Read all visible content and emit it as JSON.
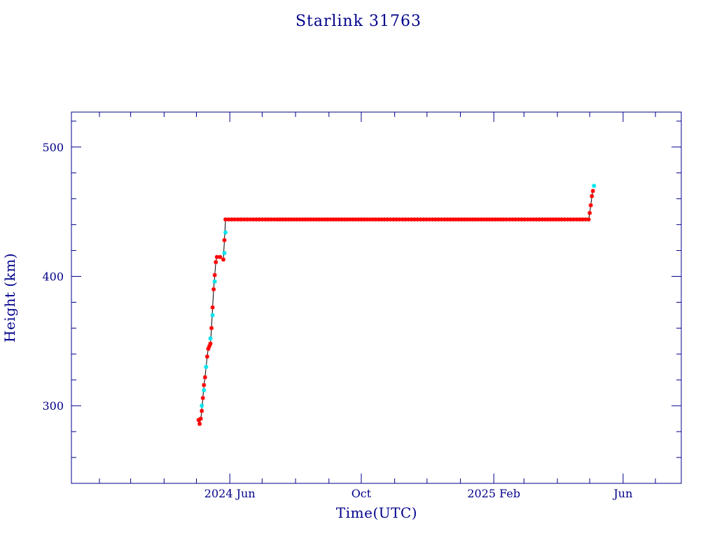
{
  "chart_data": {
    "type": "scatter",
    "title": "Starlink 31763",
    "xlabel": "Time(UTC)",
    "ylabel": "Height (km)",
    "xlim": [
      "2024-01-06",
      "2025-07-25"
    ],
    "ylim": [
      240,
      527
    ],
    "x_ticks": [
      {
        "date": "2024-06-01",
        "label": "2024 Jun"
      },
      {
        "date": "2024-10-01",
        "label": "Oct"
      },
      {
        "date": "2025-02-01",
        "label": "2025 Feb"
      },
      {
        "date": "2025-06-01",
        "label": "Jun"
      }
    ],
    "y_ticks": [
      300,
      400,
      500
    ],
    "grid": false,
    "line_color": "#000000",
    "colors": {
      "red": "#ff0000",
      "cyan": "#00e5ee",
      "axis": "#00008b"
    },
    "series": [
      {
        "color": "red",
        "points": [
          [
            "2024-05-03",
            289
          ],
          [
            "2024-05-04",
            286
          ],
          [
            "2024-05-05",
            290
          ],
          [
            "2024-05-06",
            296
          ],
          [
            "2024-05-07",
            306
          ],
          [
            "2024-05-08",
            316
          ],
          [
            "2024-05-09",
            322
          ],
          [
            "2024-05-11",
            338
          ],
          [
            "2024-05-12",
            344
          ],
          [
            "2024-05-13",
            346
          ],
          [
            "2024-05-14",
            348
          ],
          [
            "2024-05-15",
            360
          ],
          [
            "2024-05-16",
            376
          ],
          [
            "2024-05-17",
            390
          ],
          [
            "2024-05-18",
            401
          ],
          [
            "2024-05-19",
            411
          ],
          [
            "2024-05-20",
            415
          ],
          [
            "2024-05-23",
            415
          ],
          [
            "2024-05-26",
            413
          ],
          [
            "2024-05-27",
            428
          ],
          [
            "2024-05-28",
            444
          ],
          [
            "2024-06-20",
            444
          ],
          [
            "2024-07-15",
            444
          ],
          [
            "2024-08-10",
            444
          ],
          [
            "2024-09-05",
            444
          ],
          [
            "2024-10-01",
            444
          ],
          [
            "2024-10-28",
            444
          ],
          [
            "2024-11-25",
            444
          ],
          [
            "2024-12-20",
            444
          ],
          [
            "2025-01-15",
            444
          ],
          [
            "2025-02-10",
            444
          ],
          [
            "2025-03-10",
            444
          ],
          [
            "2025-04-05",
            444
          ],
          [
            "2025-04-30",
            444
          ],
          [
            "2025-05-01",
            449
          ],
          [
            "2025-05-02",
            455
          ],
          [
            "2025-05-03",
            462
          ],
          [
            "2025-05-04",
            466
          ]
        ]
      },
      {
        "color": "cyan",
        "points": [
          [
            "2024-05-06",
            300
          ],
          [
            "2024-05-08",
            312
          ],
          [
            "2024-05-10",
            330
          ],
          [
            "2024-05-14",
            352
          ],
          [
            "2024-05-16",
            370
          ],
          [
            "2024-05-18",
            396
          ],
          [
            "2024-05-27",
            418
          ],
          [
            "2024-05-28",
            434
          ],
          [
            "2025-05-05",
            470
          ]
        ]
      }
    ]
  }
}
